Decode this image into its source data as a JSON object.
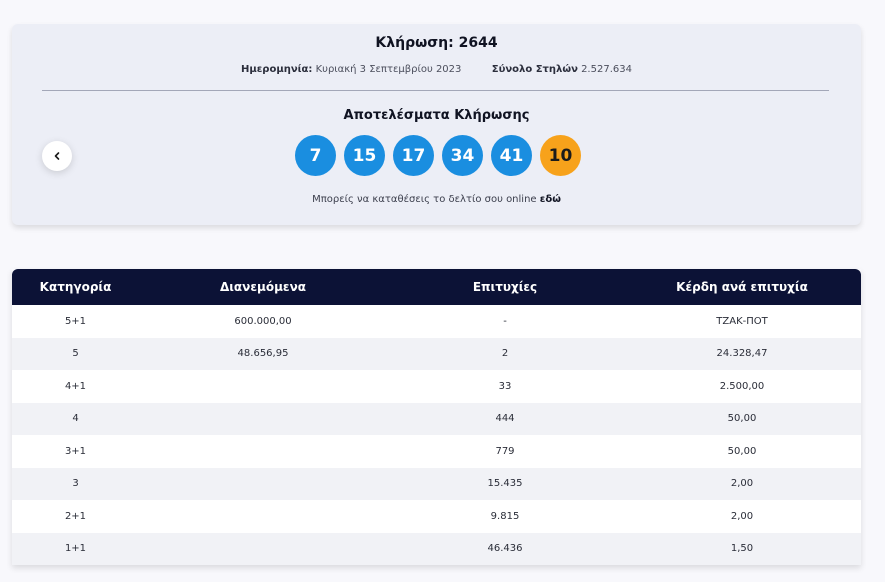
{
  "draw": {
    "title": "Κλήρωση: 2644",
    "date_label": "Ημερομηνία:",
    "date_value": "Κυριακή 3 Σεπτεμβρίου 2023",
    "columns_label": "Σύνολο Στηλών",
    "columns_value": "2.527.634",
    "results_heading": "Αποτελέσματα Κλήρωσης",
    "numbers": [
      "7",
      "15",
      "17",
      "34",
      "41"
    ],
    "joker": "10",
    "deposit_text": "Μπορείς να καταθέσεις το δελτίο σου online",
    "deposit_link": "εδώ"
  },
  "icons": {
    "prev": "chevron-left-icon"
  },
  "colors": {
    "ball_main": "#1a8ee0",
    "ball_joker": "#f7a21b",
    "table_header": "#0c1236"
  },
  "table": {
    "headers": [
      "Κατηγορία",
      "Διανεμόμενα",
      "Επιτυχίες",
      "Κέρδη ανά επιτυχία"
    ],
    "rows": [
      {
        "category": "5+1",
        "pool": "600.000,00",
        "winners": "-",
        "prize": "ΤΖΑΚ-ΠΟΤ"
      },
      {
        "category": "5",
        "pool": "48.656,95",
        "winners": "2",
        "prize": "24.328,47"
      },
      {
        "category": "4+1",
        "pool": "",
        "winners": "33",
        "prize": "2.500,00"
      },
      {
        "category": "4",
        "pool": "",
        "winners": "444",
        "prize": "50,00"
      },
      {
        "category": "3+1",
        "pool": "",
        "winners": "779",
        "prize": "50,00"
      },
      {
        "category": "3",
        "pool": "",
        "winners": "15.435",
        "prize": "2,00"
      },
      {
        "category": "2+1",
        "pool": "",
        "winners": "9.815",
        "prize": "2,00"
      },
      {
        "category": "1+1",
        "pool": "",
        "winners": "46.436",
        "prize": "1,50"
      }
    ]
  }
}
